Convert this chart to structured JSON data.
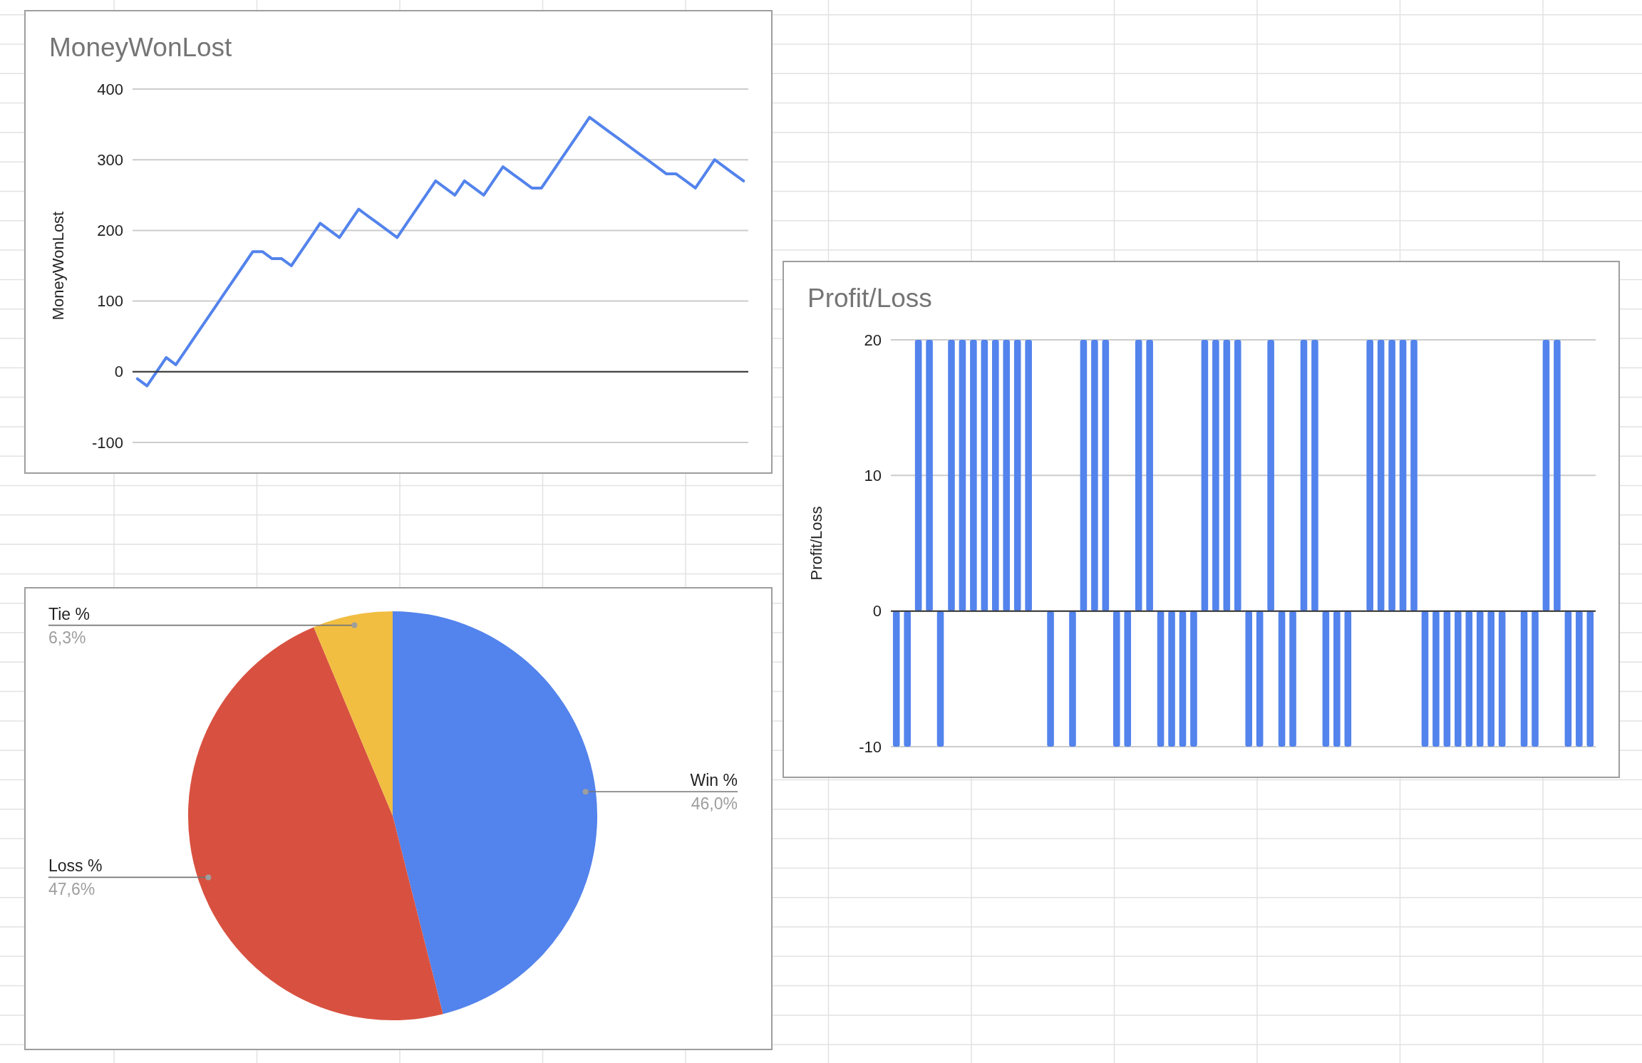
{
  "chart_data": [
    {
      "type": "line",
      "title": "MoneyWonLost",
      "ylabel": "MoneyWonLost",
      "categories": [
        null,
        null,
        null,
        null,
        null,
        null,
        null,
        null,
        null,
        null,
        null,
        null,
        null,
        null,
        null,
        null,
        null,
        null,
        null,
        null,
        null,
        null,
        null,
        null,
        null,
        null,
        null,
        null,
        null,
        null,
        null,
        null,
        null,
        null,
        null,
        null,
        null,
        null,
        null,
        null,
        null,
        null,
        null,
        null,
        null,
        null,
        null,
        null,
        null,
        null,
        null,
        null,
        null,
        null,
        null,
        null,
        null,
        null,
        null,
        null,
        null,
        null,
        null,
        null
      ],
      "series": [
        {
          "color": "#5383ec",
          "values": [
            -10,
            -20,
            0,
            20,
            10,
            30,
            50,
            70,
            90,
            110,
            130,
            150,
            170,
            170,
            160,
            160,
            150,
            170,
            190,
            210,
            200,
            190,
            210,
            230,
            220,
            210,
            200,
            190,
            210,
            230,
            250,
            270,
            260,
            250,
            270,
            260,
            250,
            270,
            290,
            280,
            270,
            260,
            260,
            280,
            300,
            320,
            340,
            360,
            350,
            340,
            330,
            320,
            310,
            300,
            290,
            280,
            280,
            270,
            260,
            280,
            300,
            290,
            280,
            270
          ]
        }
      ],
      "ylim": [
        -100,
        400
      ],
      "yticks": [
        -100,
        0,
        100,
        200,
        300,
        400
      ],
      "grid": "y"
    },
    {
      "type": "bar",
      "title": "Profit/Loss",
      "ylabel": "Profit/Loss",
      "categories": [
        null,
        null,
        null,
        null,
        null,
        null,
        null,
        null,
        null,
        null,
        null,
        null,
        null,
        null,
        null,
        null,
        null,
        null,
        null,
        null,
        null,
        null,
        null,
        null,
        null,
        null,
        null,
        null,
        null,
        null,
        null,
        null,
        null,
        null,
        null,
        null,
        null,
        null,
        null,
        null,
        null,
        null,
        null,
        null,
        null,
        null,
        null,
        null,
        null,
        null,
        null,
        null,
        null,
        null,
        null,
        null,
        null,
        null,
        null,
        null,
        null,
        null,
        null,
        null
      ],
      "series": [
        {
          "color": "#5383ec",
          "values": [
            -10,
            -10,
            20,
            20,
            -10,
            20,
            20,
            20,
            20,
            20,
            20,
            20,
            20,
            0,
            -10,
            0,
            -10,
            20,
            20,
            20,
            -10,
            -10,
            20,
            20,
            -10,
            -10,
            -10,
            -10,
            20,
            20,
            20,
            20,
            -10,
            -10,
            20,
            -10,
            -10,
            20,
            20,
            -10,
            -10,
            -10,
            0,
            20,
            20,
            20,
            20,
            20,
            -10,
            -10,
            -10,
            -10,
            -10,
            -10,
            -10,
            -10,
            0,
            -10,
            -10,
            20,
            20,
            -10,
            -10,
            -10
          ]
        }
      ],
      "ylim": [
        -10,
        20
      ],
      "yticks": [
        -10,
        0,
        10,
        20
      ],
      "grid": "y"
    },
    {
      "type": "pie",
      "categories": [
        "Win %",
        "Loss %",
        "Tie %"
      ],
      "values": [
        46.0,
        47.6,
        6.3
      ],
      "colors": [
        "#5383ec",
        "#d85140",
        "#f1be42"
      ],
      "value_labels": [
        "46,0%",
        "47,6%",
        "6,3%"
      ]
    }
  ]
}
